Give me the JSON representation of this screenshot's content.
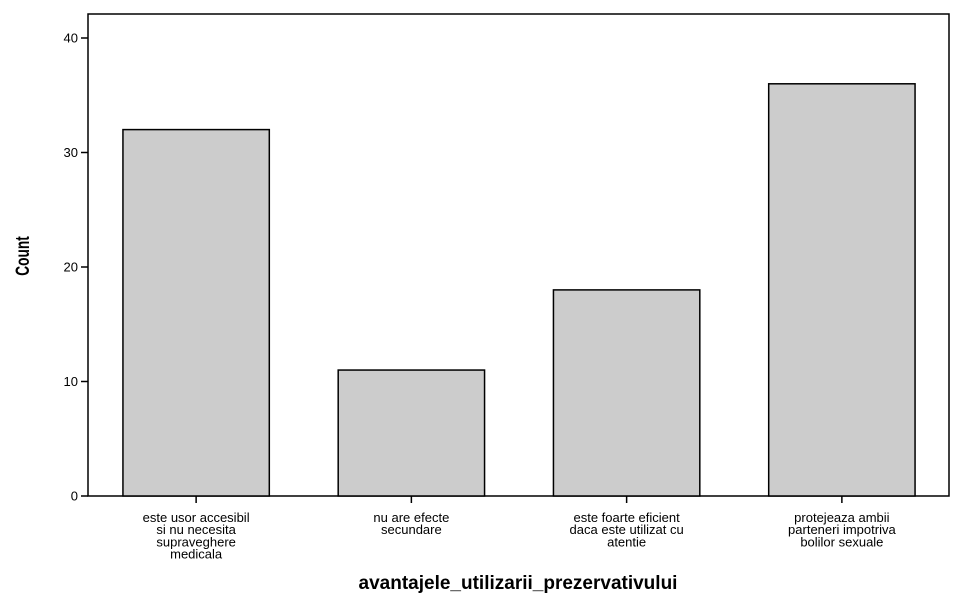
{
  "chart_data": {
    "type": "bar",
    "categories": [
      [
        "este usor accesibil",
        "si nu necesita",
        "supraveghere",
        "medicala"
      ],
      [
        "nu are efecte",
        "secundare"
      ],
      [
        "este foarte eficient",
        "daca este utilizat cu",
        "atentie"
      ],
      [
        "protejeaza ambii",
        "parteneri impotriva",
        "bolilor sexuale"
      ]
    ],
    "values": [
      32,
      11,
      18,
      36
    ],
    "xlabel": "avantajele_utilizarii_prezervativului",
    "ylabel": "Count",
    "ylim": [
      0,
      40
    ],
    "yticks": [
      0,
      10,
      20,
      30,
      40
    ],
    "grid": false,
    "colors": {
      "bar_fill": "#cccccc",
      "bar_stroke": "#000000",
      "axis": "#000000",
      "background": "#ffffff"
    }
  }
}
